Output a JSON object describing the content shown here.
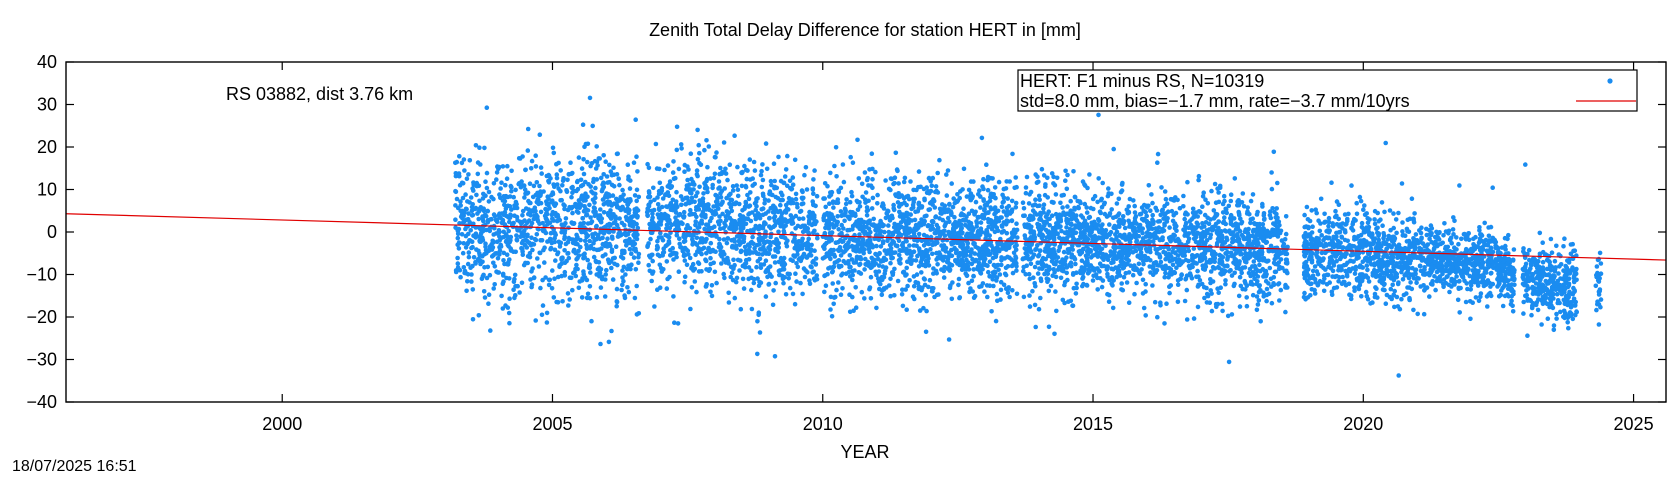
{
  "timestamp": "18/07/2025 16:51",
  "chart_data": {
    "type": "scatter",
    "title": "Zenith Total Delay Difference for station HERT in [mm]",
    "xlabel": "YEAR",
    "ylabel": "",
    "xlim": [
      1996.0,
      2025.6
    ],
    "ylim": [
      -40,
      40
    ],
    "xticks": [
      2000,
      2005,
      2010,
      2015,
      2020,
      2025
    ],
    "yticks": [
      -40,
      -30,
      -20,
      -10,
      0,
      10,
      20,
      30,
      40
    ],
    "grid": false,
    "annotation": "RS 03882, dist 3.76 km",
    "legend": {
      "placement": "top-right",
      "line1": "HERT: F1 minus RS, N=10319",
      "line2": "std=8.0 mm, bias=−1.7 mm, rate=−3.7 mm/10yrs"
    },
    "colors": {
      "points": "#1a8cf0",
      "trend": "#e00000"
    },
    "series": [
      {
        "type": "scatter",
        "n_points": 10319,
        "density_profile": {
          "x": [
            2003.2,
            2004.0,
            2005.0,
            2005.6,
            2006.7,
            2007.5,
            2008.5,
            2009.5,
            2010.5,
            2011.5,
            2012.5,
            2013.5,
            2014.5,
            2015.5,
            2016.5,
            2017.5,
            2018.3,
            2018.7,
            2019.5,
            2020.5,
            2021.5,
            2022.5,
            2022.8,
            2023.3,
            2023.8,
            2024.4
          ],
          "center": [
            1,
            0.5,
            0,
            2,
            1,
            2,
            1,
            0,
            -1,
            -1,
            -1,
            -2,
            -2,
            -3,
            -3,
            -3,
            -4,
            -6,
            -4,
            -6,
            -7,
            -7,
            -10,
            -12,
            -13,
            -10
          ],
          "spread": [
            9,
            8,
            8,
            9,
            8,
            8,
            8,
            7,
            7,
            7,
            7,
            7,
            6,
            6,
            6,
            6,
            6,
            5,
            5,
            5,
            4,
            4,
            4,
            4,
            5,
            4
          ],
          "data_gaps": [
            [
              2006.6,
              2006.75
            ],
            [
              2009.9,
              2010.0
            ],
            [
              2013.6,
              2013.7
            ],
            [
              2018.6,
              2018.9
            ],
            [
              2022.8,
              2022.95
            ],
            [
              2023.95,
              2024.3
            ]
          ]
        }
      },
      {
        "type": "line",
        "x": [
          1996.0,
          2025.6
        ],
        "y": [
          4.3,
          -6.6
        ]
      }
    ]
  }
}
